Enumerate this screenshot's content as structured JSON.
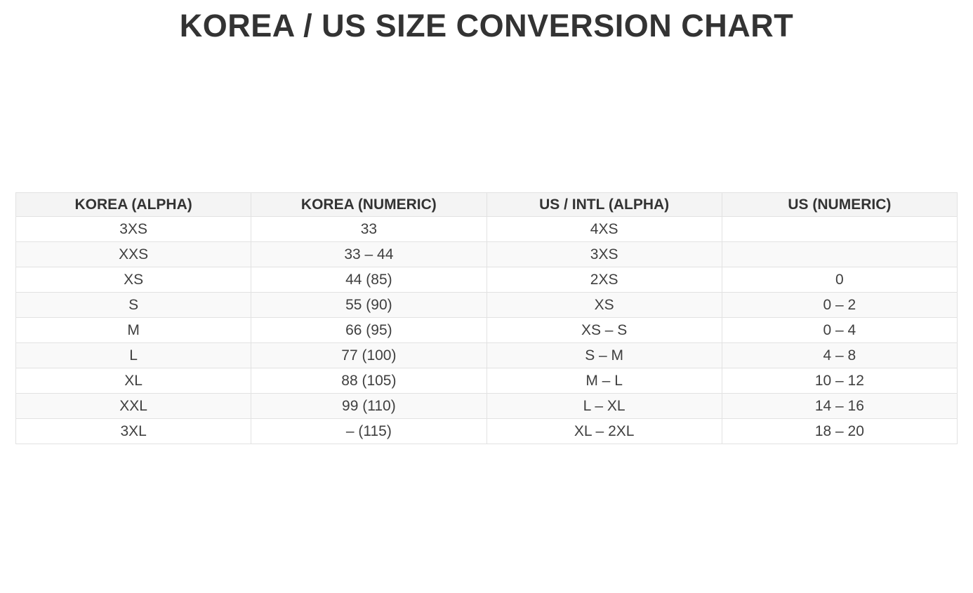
{
  "page": {
    "title": "KOREA / US SIZE CONVERSION CHART"
  },
  "colors": {
    "title_text": "#333333",
    "header_bg": "#f4f4f4",
    "header_text": "#333333",
    "row_bg": "#ffffff",
    "row_alt_bg": "#f9f9f9",
    "cell_text": "#3f3f3f",
    "border": "#e2e2e2",
    "page_bg": "#ffffff"
  },
  "table": {
    "headers": [
      "KOREA (ALPHA)",
      "KOREA (NUMERIC)",
      "US / INTL (ALPHA)",
      "US (NUMERIC)"
    ],
    "rows": [
      [
        "3XS",
        "33",
        "4XS",
        ""
      ],
      [
        "XXS",
        "33 – 44",
        "3XS",
        ""
      ],
      [
        "XS",
        "44 (85)",
        "2XS",
        "0"
      ],
      [
        "S",
        "55 (90)",
        "XS",
        "0 – 2"
      ],
      [
        "M",
        "66 (95)",
        "XS – S",
        "0 – 4"
      ],
      [
        "L",
        "77 (100)",
        "S – M",
        "4 – 8"
      ],
      [
        "XL",
        "88 (105)",
        "M – L",
        "10 – 12"
      ],
      [
        "XXL",
        "99 (110)",
        "L – XL",
        "14 – 16"
      ],
      [
        "3XL",
        "– (115)",
        "XL – 2XL",
        "18 – 20"
      ]
    ]
  },
  "chart_data": {
    "type": "table",
    "title": "KOREA / US SIZE CONVERSION CHART",
    "columns": [
      "KOREA (ALPHA)",
      "KOREA (NUMERIC)",
      "US / INTL (ALPHA)",
      "US (NUMERIC)"
    ],
    "rows": [
      [
        "3XS",
        "33",
        "4XS",
        ""
      ],
      [
        "XXS",
        "33 – 44",
        "3XS",
        ""
      ],
      [
        "XS",
        "44 (85)",
        "2XS",
        "0"
      ],
      [
        "S",
        "55 (90)",
        "XS",
        "0 – 2"
      ],
      [
        "M",
        "66 (95)",
        "XS – S",
        "0 – 4"
      ],
      [
        "L",
        "77 (100)",
        "S – M",
        "4 – 8"
      ],
      [
        "XL",
        "88 (105)",
        "M – L",
        "10 – 12"
      ],
      [
        "XXL",
        "99 (110)",
        "L – XL",
        "14 – 16"
      ],
      [
        "3XL",
        "– (115)",
        "XL – 2XL",
        "18 – 20"
      ]
    ],
    "layout": {
      "striped_rows": true,
      "grid": true,
      "text_align": "center"
    }
  }
}
